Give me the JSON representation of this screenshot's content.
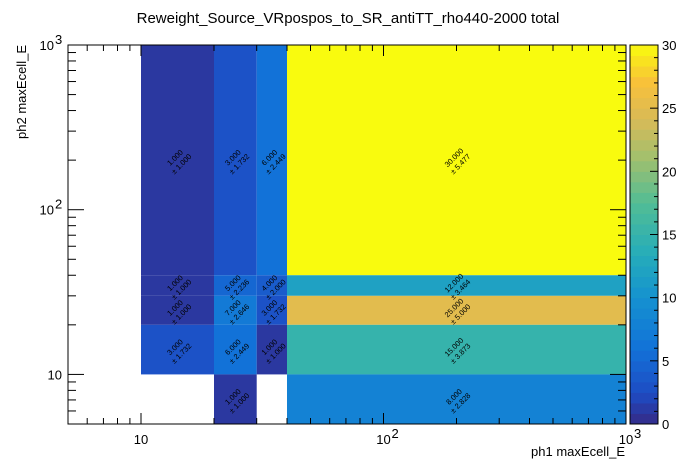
{
  "chart_data": {
    "type": "heatmap",
    "title": "Reweight_Source_VRpospos_to_SR_antiTT_rho440-2000 total",
    "xlabel": "ph1 maxEcell_E",
    "ylabel": "ph2 maxEcell_E",
    "x_scale": "log",
    "y_scale": "log",
    "xlim": [
      5,
      1000
    ],
    "ylim": [
      5,
      1000
    ],
    "x_ticks": [
      {
        "v": 10,
        "label": "10"
      },
      {
        "v": 100,
        "label": "10"
      },
      {
        "v": 1000,
        "label": "10"
      }
    ],
    "x_tick_exponents": [
      "",
      "2",
      "3"
    ],
    "y_ticks": [
      {
        "v": 10,
        "label": "10"
      },
      {
        "v": 100,
        "label": "10"
      },
      {
        "v": 1000,
        "label": "10"
      }
    ],
    "y_tick_exponents": [
      "",
      "2",
      "3"
    ],
    "colorbar": {
      "min": 0,
      "max": 30,
      "ticks": [
        "0",
        "5",
        "10",
        "15",
        "20",
        "25",
        "30"
      ]
    },
    "cells": [
      {
        "x": [
          10,
          20
        ],
        "y": [
          40,
          1000
        ],
        "value": 1.0,
        "error": 1.0,
        "label": "1.000",
        "err_label": "± 1.000"
      },
      {
        "x": [
          20,
          30
        ],
        "y": [
          40,
          1000
        ],
        "value": 3.0,
        "error": 1.732,
        "label": "3.000",
        "err_label": "± 1.732"
      },
      {
        "x": [
          30,
          40
        ],
        "y": [
          40,
          1000
        ],
        "value": 6.0,
        "error": 2.449,
        "label": "6.000",
        "err_label": "± 2.449"
      },
      {
        "x": [
          40,
          1000
        ],
        "y": [
          40,
          1000
        ],
        "value": 30.0,
        "error": 5.477,
        "label": "30.000",
        "err_label": "± 5.477"
      },
      {
        "x": [
          10,
          20
        ],
        "y": [
          30,
          40
        ],
        "value": 1.0,
        "error": 1.0,
        "label": "1.000",
        "err_label": "± 1.000"
      },
      {
        "x": [
          20,
          30
        ],
        "y": [
          30,
          40
        ],
        "value": 5.0,
        "error": 2.236,
        "label": "5.000",
        "err_label": "± 2.236"
      },
      {
        "x": [
          30,
          40
        ],
        "y": [
          30,
          40
        ],
        "value": 4.0,
        "error": 2.0,
        "label": "4.000",
        "err_label": "± 2.000"
      },
      {
        "x": [
          40,
          1000
        ],
        "y": [
          30,
          40
        ],
        "value": 12.0,
        "error": 3.464,
        "label": "12.000",
        "err_label": "± 3.464"
      },
      {
        "x": [
          10,
          20
        ],
        "y": [
          20,
          30
        ],
        "value": 1.0,
        "error": 1.0,
        "label": "1.000",
        "err_label": "± 1.000"
      },
      {
        "x": [
          20,
          30
        ],
        "y": [
          20,
          30
        ],
        "value": 7.0,
        "error": 2.646,
        "label": "7.000",
        "err_label": "± 2.646"
      },
      {
        "x": [
          30,
          40
        ],
        "y": [
          20,
          30
        ],
        "value": 3.0,
        "error": 1.732,
        "label": "3.000",
        "err_label": "± 1.732"
      },
      {
        "x": [
          40,
          1000
        ],
        "y": [
          20,
          30
        ],
        "value": 25.0,
        "error": 5.0,
        "label": "25.000",
        "err_label": "± 5.000"
      },
      {
        "x": [
          10,
          20
        ],
        "y": [
          10,
          20
        ],
        "value": 3.0,
        "error": 1.732,
        "label": "3.000",
        "err_label": "± 1.732"
      },
      {
        "x": [
          20,
          30
        ],
        "y": [
          10,
          20
        ],
        "value": 6.0,
        "error": 2.449,
        "label": "6.000",
        "err_label": "± 2.449"
      },
      {
        "x": [
          30,
          40
        ],
        "y": [
          10,
          20
        ],
        "value": 1.0,
        "error": 1.0,
        "label": "1.000",
        "err_label": "± 1.000"
      },
      {
        "x": [
          40,
          1000
        ],
        "y": [
          10,
          20
        ],
        "value": 15.0,
        "error": 3.873,
        "label": "15.000",
        "err_label": "± 3.873"
      },
      {
        "x": [
          20,
          30
        ],
        "y": [
          5,
          10
        ],
        "value": 1.0,
        "error": 1.0,
        "label": "1.000",
        "err_label": "± 1.000"
      },
      {
        "x": [
          40,
          1000
        ],
        "y": [
          5,
          10
        ],
        "value": 8.0,
        "error": 2.828,
        "label": "8.000",
        "err_label": "± 2.828"
      }
    ]
  }
}
